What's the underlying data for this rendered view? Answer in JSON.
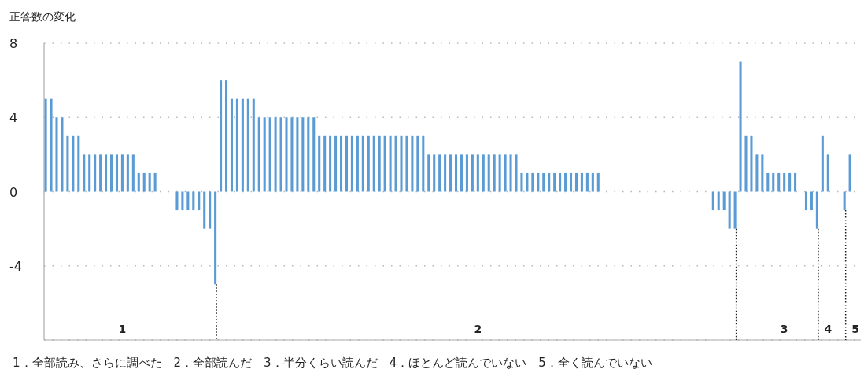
{
  "chart_data": {
    "type": "bar",
    "ylabel": "正答数の変化",
    "categories": [
      null,
      null,
      null,
      null,
      null,
      null,
      null,
      null,
      null,
      null,
      null,
      null,
      null,
      null,
      "1",
      null,
      null,
      null,
      null,
      null,
      null,
      null,
      null,
      null,
      null,
      null,
      null,
      null,
      null,
      null,
      null,
      null,
      null,
      null,
      null,
      null,
      null,
      null,
      null,
      null,
      null,
      null,
      null,
      null,
      null,
      null,
      null,
      null,
      null,
      null,
      null,
      null,
      null,
      null,
      null,
      null,
      null,
      null,
      null,
      null,
      null,
      null,
      null,
      null,
      null,
      null,
      null,
      null,
      null,
      null,
      null,
      null,
      null,
      null,
      null,
      null,
      null,
      null,
      null,
      "2",
      null,
      null,
      null,
      null,
      null,
      null,
      null,
      null,
      null,
      null,
      null,
      null,
      null,
      null,
      null,
      null,
      null,
      null,
      null,
      null,
      null,
      null,
      null,
      null,
      null,
      null,
      null,
      null,
      null,
      null,
      null,
      null,
      null,
      null,
      null,
      null,
      null,
      null,
      null,
      null,
      null,
      null,
      null,
      null,
      null,
      null,
      null,
      null,
      null,
      null,
      null,
      null,
      null,
      null,
      null,
      "3",
      null,
      null,
      null,
      null,
      null,
      null,
      null,
      "4",
      null,
      null,
      null,
      null,
      "5"
    ],
    "values": [
      5,
      5,
      4,
      4,
      3,
      3,
      3,
      2,
      2,
      2,
      2,
      2,
      2,
      2,
      2,
      2,
      2,
      1,
      1,
      1,
      1,
      0,
      0,
      0,
      -1,
      -1,
      -1,
      -1,
      -1,
      -2,
      -2,
      -5,
      6,
      6,
      5,
      5,
      5,
      5,
      5,
      4,
      4,
      4,
      4,
      4,
      4,
      4,
      4,
      4,
      4,
      4,
      3,
      3,
      3,
      3,
      3,
      3,
      3,
      3,
      3,
      3,
      3,
      3,
      3,
      3,
      3,
      3,
      3,
      3,
      3,
      3,
      2,
      2,
      2,
      2,
      2,
      2,
      2,
      2,
      2,
      2,
      2,
      2,
      2,
      2,
      2,
      2,
      2,
      1,
      1,
      1,
      1,
      1,
      1,
      1,
      1,
      1,
      1,
      1,
      1,
      1,
      1,
      1,
      0,
      0,
      0,
      0,
      0,
      0,
      0,
      0,
      0,
      0,
      0,
      0,
      0,
      0,
      0,
      0,
      0,
      0,
      0,
      0,
      -1,
      -1,
      -1,
      -2,
      -2,
      7,
      3,
      3,
      2,
      2,
      1,
      1,
      1,
      1,
      1,
      1,
      0,
      -1,
      -1,
      -2,
      3,
      2,
      0,
      0,
      -1,
      2,
      0
    ],
    "color": "#5b9bd5",
    "ylim": [
      -8,
      8
    ],
    "yticks": [
      {
        "value": -8,
        "label": null
      },
      -4,
      0,
      4,
      8
    ],
    "grid": "y",
    "annotations": [
      "1．全部読み、さらに調べた　2．全部読んだ　3．半分くらい読んだ　4．ほとんど読んでいない　5．全く読んでいない"
    ]
  }
}
